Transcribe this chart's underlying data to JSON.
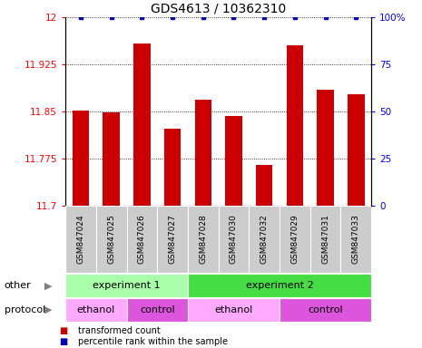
{
  "title": "GDS4613 / 10362310",
  "samples": [
    "GSM847024",
    "GSM847025",
    "GSM847026",
    "GSM847027",
    "GSM847028",
    "GSM847030",
    "GSM847032",
    "GSM847029",
    "GSM847031",
    "GSM847033"
  ],
  "bar_values": [
    11.851,
    11.848,
    11.958,
    11.822,
    11.868,
    11.843,
    11.765,
    11.955,
    11.885,
    11.878
  ],
  "percentile_values": [
    100,
    100,
    100,
    100,
    100,
    100,
    100,
    100,
    100,
    100
  ],
  "ylim_left": [
    11.7,
    12.0
  ],
  "ylim_right": [
    0,
    100
  ],
  "yticks_left": [
    11.7,
    11.775,
    11.85,
    11.925,
    12.0
  ],
  "yticks_right": [
    0,
    25,
    50,
    75,
    100
  ],
  "ytick_labels_left": [
    "11.7",
    "11.775",
    "11.85",
    "11.925",
    "12"
  ],
  "ytick_labels_right": [
    "0",
    "25",
    "50",
    "75",
    "100%"
  ],
  "bar_color": "#cc0000",
  "dot_color": "#0000bb",
  "bar_width": 0.55,
  "groups": [
    {
      "label": "experiment 1",
      "start": 0,
      "end": 4,
      "color": "#aaffaa"
    },
    {
      "label": "experiment 2",
      "start": 4,
      "end": 10,
      "color": "#44dd44"
    }
  ],
  "protocol_groups": [
    {
      "label": "ethanol",
      "start": 0,
      "end": 2,
      "color": "#ffaaff"
    },
    {
      "label": "control",
      "start": 2,
      "end": 4,
      "color": "#dd55dd"
    },
    {
      "label": "ethanol",
      "start": 4,
      "end": 7,
      "color": "#ffaaff"
    },
    {
      "label": "control",
      "start": 7,
      "end": 10,
      "color": "#dd55dd"
    }
  ],
  "legend_items": [
    {
      "label": "transformed count",
      "color": "#cc0000"
    },
    {
      "label": "percentile rank within the sample",
      "color": "#0000bb"
    }
  ],
  "sample_bg_color": "#cccccc",
  "tick_fontsize": 7.5,
  "title_fontsize": 10,
  "label_fontsize": 8,
  "sample_fontsize": 6.5,
  "group_fontsize": 8
}
